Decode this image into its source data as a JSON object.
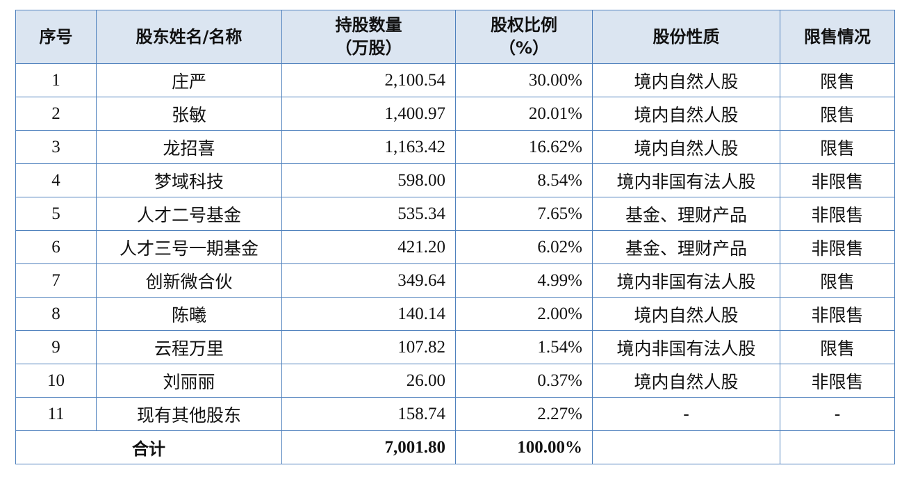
{
  "table": {
    "header": [
      [
        "序号"
      ],
      [
        "股东姓名/名称"
      ],
      [
        "持股数量",
        "（万股）"
      ],
      [
        "股权比例",
        "（%）"
      ],
      [
        "股份性质"
      ],
      [
        "限售情况"
      ]
    ],
    "rows": [
      [
        "1",
        "庄严",
        "2,100.54",
        "30.00%",
        "境内自然人股",
        "限售"
      ],
      [
        "2",
        "张敏",
        "1,400.97",
        "20.01%",
        "境内自然人股",
        "限售"
      ],
      [
        "3",
        "龙招喜",
        "1,163.42",
        "16.62%",
        "境内自然人股",
        "限售"
      ],
      [
        "4",
        "梦域科技",
        "598.00",
        "8.54%",
        "境内非国有法人股",
        "非限售"
      ],
      [
        "5",
        "人才二号基金",
        "535.34",
        "7.65%",
        "基金、理财产品",
        "非限售"
      ],
      [
        "6",
        "人才三号一期基金",
        "421.20",
        "6.02%",
        "基金、理财产品",
        "非限售"
      ],
      [
        "7",
        "创新微合伙",
        "349.64",
        "4.99%",
        "境内非国有法人股",
        "限售"
      ],
      [
        "8",
        "陈曦",
        "140.14",
        "2.00%",
        "境内自然人股",
        "非限售"
      ],
      [
        "9",
        "云程万里",
        "107.82",
        "1.54%",
        "境内非国有法人股",
        "限售"
      ],
      [
        "10",
        "刘丽丽",
        "26.00",
        "0.37%",
        "境内自然人股",
        "非限售"
      ],
      [
        "11",
        "现有其他股东",
        "158.74",
        "2.27%",
        "-",
        "-"
      ]
    ],
    "total": {
      "label": "合计",
      "shares": "7,001.80",
      "pct": "100.00%"
    }
  }
}
